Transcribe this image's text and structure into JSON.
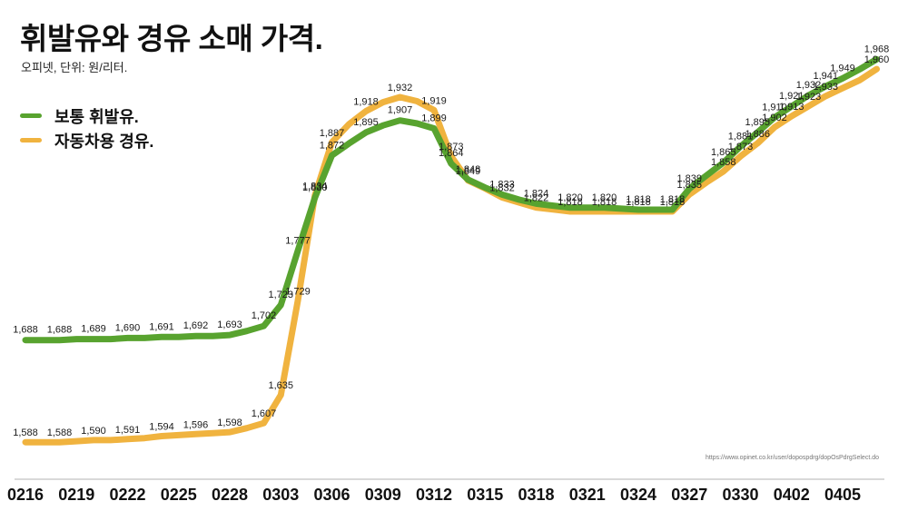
{
  "header": {
    "title": "휘발유와 경유 소매 가격.",
    "subtitle": "오피넷, 단위: 원/리터."
  },
  "legend": {
    "items": [
      {
        "label": "보통 휘발유.",
        "color": "#58a32f"
      },
      {
        "label": "자동차용 경유.",
        "color": "#f0b33f"
      }
    ]
  },
  "source": {
    "url_text": "https://www.opinet.co.kr/user/dopospdrg/dopOsPdrgSelect.do"
  },
  "chart_data": {
    "type": "line",
    "title": "휘발유와 경유 소매 가격.",
    "unit": "원/리터",
    "source_label": "오피넷",
    "grid": false,
    "legend_position": "top-left",
    "ylim": [
      1580,
      1975
    ],
    "axis_color": "#b3b3b3",
    "tick_label_color": "#111111",
    "value_label_color": "#1a1a1a",
    "x_tick_labels": [
      "0216",
      "0219",
      "0222",
      "0225",
      "0228",
      "0303",
      "0306",
      "0309",
      "0312",
      "0315",
      "0318",
      "0321",
      "0324",
      "0327",
      "0330",
      "0402",
      "0405"
    ],
    "x_dates": [
      "0216",
      "0217",
      "0218",
      "0219",
      "0220",
      "0221",
      "0222",
      "0223",
      "0224",
      "0225",
      "0226",
      "0227",
      "0228",
      "0301",
      "0302",
      "0303",
      "0304",
      "0305",
      "0306",
      "0307",
      "0308",
      "0309",
      "0310",
      "0311",
      "0312",
      "0313",
      "0314",
      "0315",
      "0316",
      "0317",
      "0318",
      "0319",
      "0320",
      "0321",
      "0322",
      "0323",
      "0324",
      "0325",
      "0326",
      "0327",
      "0328",
      "0329",
      "0330",
      "0331",
      "0401",
      "0402",
      "0403",
      "0404",
      "0405",
      "0406",
      "0407"
    ],
    "series": [
      {
        "name": "보통 휘발유",
        "color": "#58a32f",
        "values": [
          1688,
          1688,
          1688,
          1689,
          1689,
          1689,
          1690,
          1690,
          1691,
          1691,
          1692,
          1692,
          1693,
          1697,
          1702,
          1723,
          1777,
          1830,
          1872,
          1884,
          1895,
          1902,
          1907,
          1904,
          1899,
          1864,
          1848,
          1840,
          1833,
          1828,
          1824,
          1822,
          1820,
          1820,
          1820,
          1819,
          1818,
          1818,
          1818,
          1839,
          1852,
          1865,
          1881,
          1895,
          1910,
          1921,
          1932,
          1941,
          1949,
          1958,
          1968
        ],
        "labels_visible": [
          1,
          0,
          1,
          0,
          1,
          0,
          1,
          0,
          1,
          0,
          1,
          0,
          1,
          0,
          1,
          1,
          1,
          1,
          1,
          0,
          1,
          0,
          1,
          0,
          1,
          1,
          1,
          0,
          1,
          0,
          1,
          0,
          1,
          0,
          1,
          0,
          1,
          0,
          1,
          1,
          0,
          1,
          1,
          1,
          1,
          1,
          1,
          1,
          1,
          0,
          1
        ]
      },
      {
        "name": "자동차용 경유",
        "color": "#f0b33f",
        "values": [
          1588,
          1588,
          1588,
          1589,
          1590,
          1590,
          1591,
          1592,
          1594,
          1595,
          1596,
          1597,
          1598,
          1602,
          1607,
          1635,
          1729,
          1834,
          1887,
          1905,
          1918,
          1927,
          1932,
          1928,
          1919,
          1873,
          1849,
          1841,
          1832,
          1827,
          1822,
          1820,
          1818,
          1818,
          1818,
          1818,
          1818,
          1818,
          1818,
          1835,
          1847,
          1858,
          1873,
          1886,
          1902,
          1913,
          1923,
          1933,
          1941,
          1949,
          1960
        ],
        "labels_visible": [
          1,
          0,
          1,
          0,
          1,
          0,
          1,
          0,
          1,
          0,
          1,
          0,
          1,
          0,
          1,
          1,
          1,
          1,
          1,
          0,
          1,
          0,
          1,
          0,
          1,
          1,
          1,
          0,
          1,
          0,
          1,
          0,
          1,
          0,
          1,
          0,
          1,
          0,
          1,
          1,
          0,
          1,
          1,
          1,
          1,
          1,
          1,
          1,
          0,
          0,
          1
        ]
      }
    ]
  }
}
